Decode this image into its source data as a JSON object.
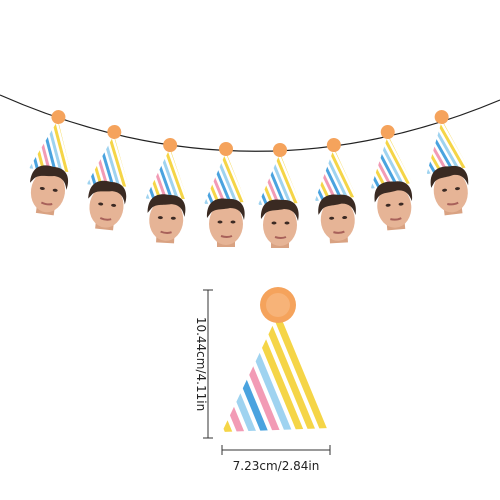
{
  "dimensions": {
    "height": "10.44cm/4.11in",
    "width": "7.23cm/2.84in"
  }
}
